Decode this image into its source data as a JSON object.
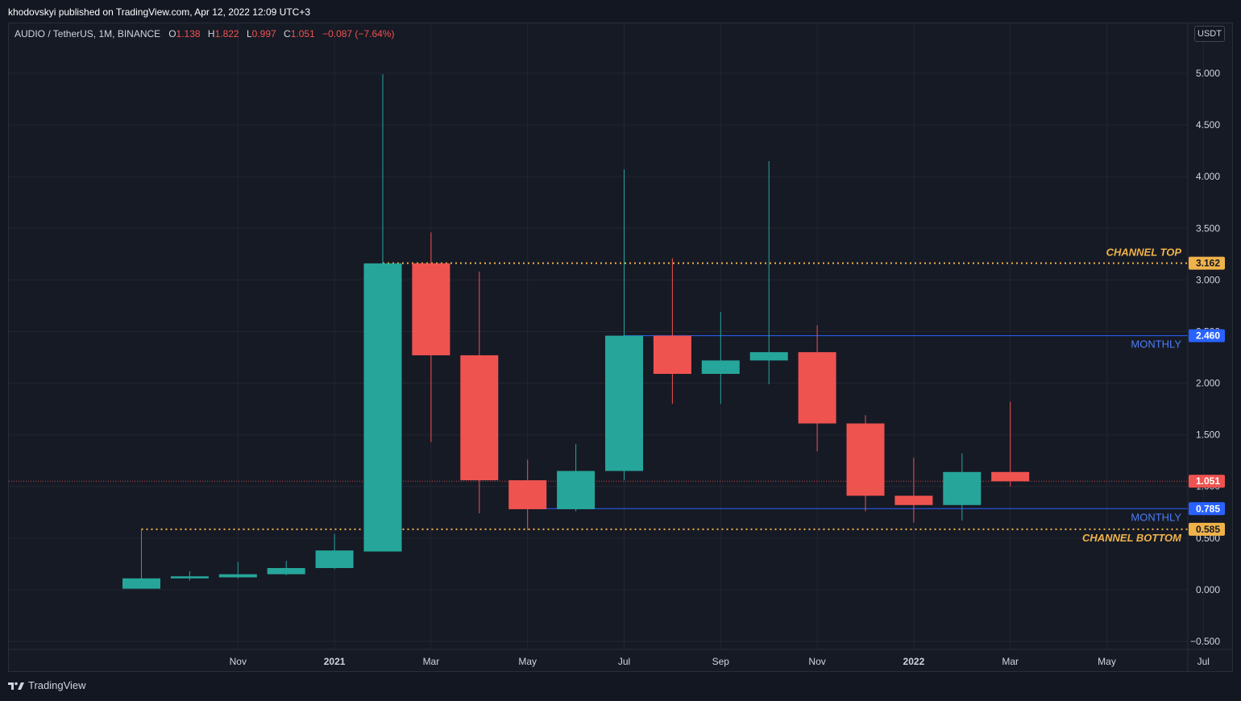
{
  "header": {
    "publisher_line": "khodovskyi published on TradingView.com, Apr 12, 2022 12:09 UTC+3"
  },
  "legend": {
    "symbol": "AUDIO / TetherUS, 1M, BINANCE",
    "open_label": "O",
    "open_value": "1.138",
    "high_label": "H",
    "high_value": "1.822",
    "low_label": "L",
    "low_value": "0.997",
    "close_label": "C",
    "close_value": "1.051",
    "change": "−0.087 (−7.64%)"
  },
  "currency_button": "USDT",
  "brand": {
    "label": "TradingView",
    "icon": "tradingview-logo-icon"
  },
  "colors": {
    "background": "#161a25",
    "up": "#26a69a",
    "down": "#ef5350",
    "channel": "#f0b34a",
    "monthly": "#2962ff",
    "axis_text": "#d1d4dc"
  },
  "chart_data": {
    "type": "candlestick",
    "x_ticks": [
      "Nov",
      "2021",
      "Mar",
      "May",
      "Jul",
      "Sep",
      "Nov",
      "2022",
      "Mar",
      "May",
      "Jul"
    ],
    "y_ticks": [
      "5.000",
      "4.500",
      "4.000",
      "3.500",
      "3.000",
      "2.500",
      "2.000",
      "1.500",
      "1.000",
      "0.500",
      "0.000",
      "−0.500"
    ],
    "ylim": [
      -0.5,
      5.0
    ],
    "candles": [
      {
        "date": "2020-09",
        "open": 0.01,
        "high": 0.59,
        "low": 0.01,
        "close": 0.11
      },
      {
        "date": "2020-10",
        "open": 0.11,
        "high": 0.18,
        "low": 0.09,
        "close": 0.13
      },
      {
        "date": "2020-11",
        "open": 0.12,
        "high": 0.27,
        "low": 0.11,
        "close": 0.15
      },
      {
        "date": "2020-12",
        "open": 0.15,
        "high": 0.28,
        "low": 0.14,
        "close": 0.21
      },
      {
        "date": "2021-01",
        "open": 0.21,
        "high": 0.54,
        "low": 0.2,
        "close": 0.38
      },
      {
        "date": "2021-02",
        "open": 0.37,
        "high": 4.99,
        "low": 0.37,
        "close": 3.16
      },
      {
        "date": "2021-03",
        "open": 3.16,
        "high": 3.46,
        "low": 1.43,
        "close": 2.27
      },
      {
        "date": "2021-04",
        "open": 2.27,
        "high": 3.08,
        "low": 0.74,
        "close": 1.06
      },
      {
        "date": "2021-05",
        "open": 1.06,
        "high": 1.26,
        "low": 0.58,
        "close": 0.78
      },
      {
        "date": "2021-06",
        "open": 0.78,
        "high": 1.41,
        "low": 0.76,
        "close": 1.15
      },
      {
        "date": "2021-07",
        "open": 1.15,
        "high": 4.07,
        "low": 1.06,
        "close": 2.46
      },
      {
        "date": "2021-08",
        "open": 2.46,
        "high": 3.21,
        "low": 1.8,
        "close": 2.09
      },
      {
        "date": "2021-09",
        "open": 2.09,
        "high": 2.69,
        "low": 1.8,
        "close": 2.22
      },
      {
        "date": "2021-10",
        "open": 2.22,
        "high": 4.15,
        "low": 1.99,
        "close": 2.3
      },
      {
        "date": "2021-11",
        "open": 2.3,
        "high": 2.56,
        "low": 1.34,
        "close": 1.61
      },
      {
        "date": "2021-12",
        "open": 1.61,
        "high": 1.69,
        "low": 0.76,
        "close": 0.91
      },
      {
        "date": "2022-01",
        "open": 0.91,
        "high": 1.28,
        "low": 0.65,
        "close": 0.82
      },
      {
        "date": "2022-02",
        "open": 0.82,
        "high": 1.32,
        "low": 0.67,
        "close": 1.14
      },
      {
        "date": "2022-03",
        "open": 1.14,
        "high": 1.82,
        "low": 1.0,
        "close": 1.05
      }
    ],
    "lines": [
      {
        "label": "CHANNEL TOP",
        "value": 3.162,
        "badge": "3.162",
        "style": "dotted",
        "color": "#f0b34a",
        "start": "2021-02"
      },
      {
        "label": "MONTHLY",
        "value": 2.46,
        "badge": "2.460",
        "style": "solid",
        "color": "#2962ff",
        "start": "2021-07"
      },
      {
        "label": "MONTHLY",
        "value": 0.785,
        "badge": "0.785",
        "style": "solid",
        "color": "#2962ff",
        "start": "2021-05"
      },
      {
        "label": "CHANNEL BOTTOM",
        "value": 0.585,
        "badge": "0.585",
        "style": "dotted",
        "color": "#f0b34a",
        "start": "2020-09"
      }
    ],
    "last_price": {
      "value": 1.051,
      "badge": "1.051",
      "color": "#ef5350"
    },
    "grid": true
  }
}
